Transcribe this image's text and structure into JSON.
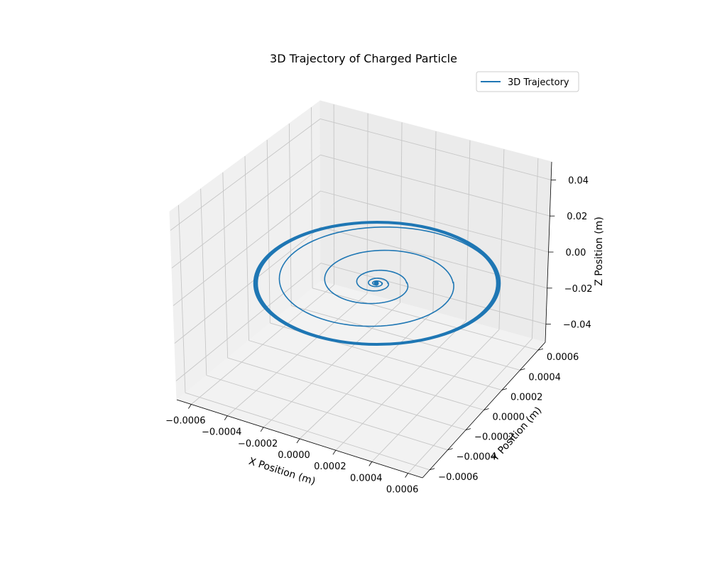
{
  "chart_data": {
    "type": "line",
    "projection": "3d",
    "title": "3D Trajectory of Charged Particle",
    "xlabel": "X Position (m)",
    "ylabel": "Y Position (m)",
    "zlabel": "Z Position (m)",
    "xlim": [
      -0.00068,
      0.00068
    ],
    "ylim": [
      -0.00068,
      0.00068
    ],
    "zlim": [
      -0.05,
      0.05
    ],
    "x_ticks": [
      "−0.0006",
      "−0.0004",
      "−0.0002",
      "0.0000",
      "0.0002",
      "0.0004",
      "0.0006"
    ],
    "y_ticks": [
      "−0.0006",
      "−0.0004",
      "−0.0002",
      "0.0000",
      "0.0002",
      "0.0004",
      "0.0006"
    ],
    "z_ticks": [
      "−0.04",
      "−0.02",
      "0.00",
      "0.02",
      "0.04"
    ],
    "grid": true,
    "legend_position": "upper right",
    "series": [
      {
        "name": "3D Trajectory",
        "color": "#1f77b4",
        "shape": "outward spiral in the z = 0 plane, centred at the origin",
        "x": [
          -1e-05,
          3e-05,
          6e-05,
          0.00016,
          0.00041,
          0.00066
        ],
        "y": [
          1e-05,
          3e-05,
          6e-05,
          0.00016,
          0.00041,
          0.00066
        ],
        "z": [
          0,
          0,
          0,
          0,
          0,
          0
        ],
        "x_center": 0.0,
        "y_center": 0.0,
        "radii": [
          1e-05,
          3e-05,
          6e-05,
          0.00016,
          0.00041,
          0.00066
        ]
      }
    ]
  }
}
